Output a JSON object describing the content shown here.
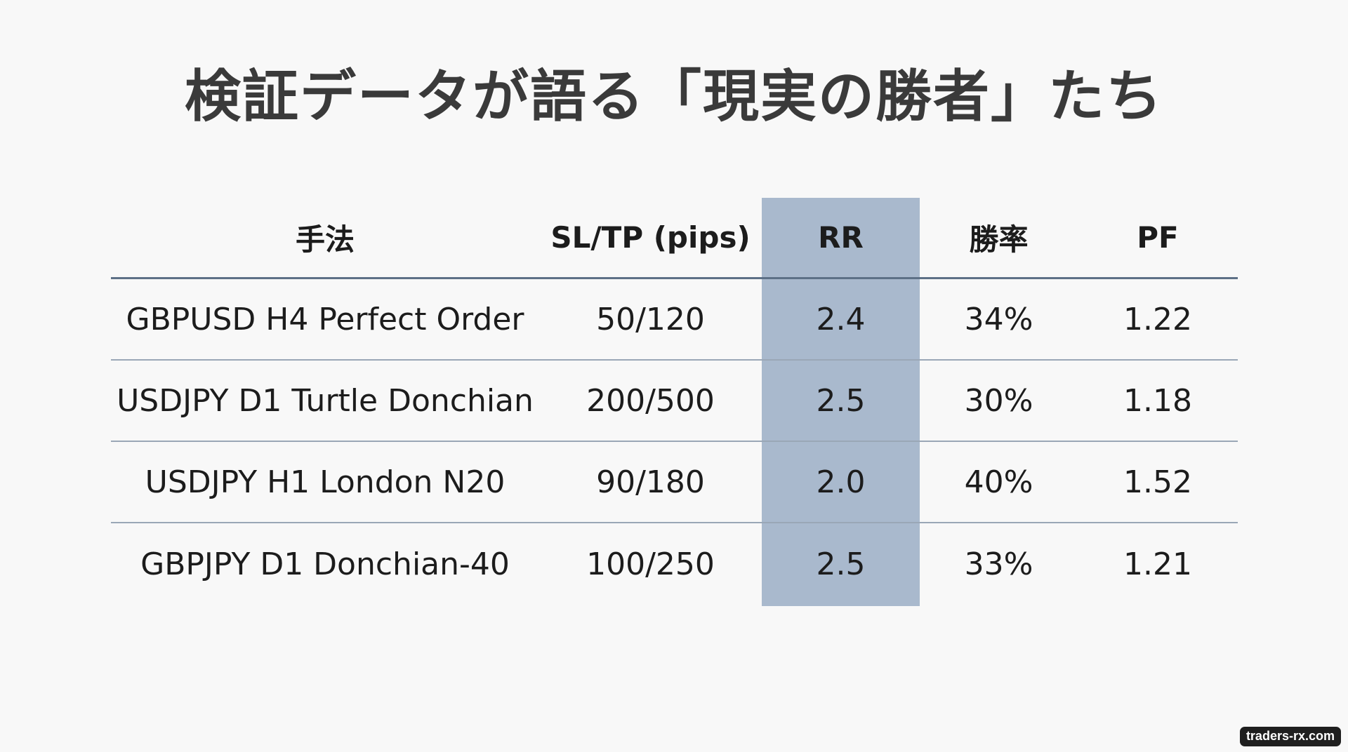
{
  "title": "検証データが語る「現実の勝者」たち",
  "table": {
    "headers": [
      "手法",
      "SL/TP (pips)",
      "RR",
      "勝率",
      "PF"
    ],
    "rows": [
      [
        "GBPUSD H4 Perfect Order",
        "50/120",
        "2.4",
        "34%",
        "1.22"
      ],
      [
        "USDJPY D1 Turtle Donchian",
        "200/500",
        "2.5",
        "30%",
        "1.18"
      ],
      [
        "USDJPY H1 London N20",
        "90/180",
        "2.0",
        "40%",
        "1.52"
      ],
      [
        "GBPJPY D1 Donchian-40",
        "100/250",
        "2.5",
        "33%",
        "1.21"
      ]
    ]
  },
  "colors": {
    "highlight": "#a9b9cd",
    "header_rule": "#5d7086",
    "row_rule": "#9aa7b6"
  },
  "watermark": "traders-rx.com"
}
